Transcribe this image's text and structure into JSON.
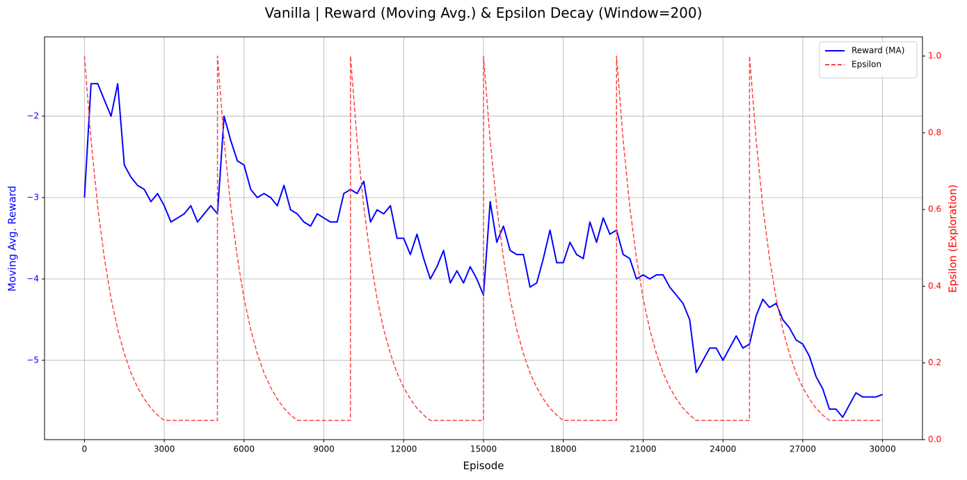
{
  "chart_data": {
    "type": "line",
    "title": "Vanilla | Reward (Moving Avg.) & Epsilon Decay (Window=200)",
    "xlabel": "Episode",
    "ylabel": "Moving Avg. Reward",
    "y2label": "Epsilon (Exploration)",
    "xlim": [
      -1500,
      31500
    ],
    "xticks": [
      0,
      3000,
      6000,
      9000,
      12000,
      15000,
      18000,
      21000,
      24000,
      27000,
      30000
    ],
    "ylim": [
      -5.975,
      -1.025
    ],
    "yticks": [
      {
        "value": -5,
        "label": "−5"
      },
      {
        "value": -4,
        "label": "−4"
      },
      {
        "value": -3,
        "label": "−3"
      },
      {
        "value": -2,
        "label": "−2"
      }
    ],
    "ylabel_color": "#0000ff",
    "y2label_color": "#ff0000",
    "y2lim": [
      0,
      1.05
    ],
    "y2ticks": [
      {
        "value": 0,
        "label": "0.0"
      },
      0.2,
      0.4,
      0.6,
      0.8,
      {
        "value": 1,
        "label": "1.0"
      }
    ],
    "grid": true,
    "legend": "upper right",
    "series": [
      {
        "name": "Reward (MA)",
        "color": "#0000ff",
        "linestyle": "solid",
        "x": [
          0,
          250,
          500,
          750,
          1000,
          1250,
          1500,
          1750,
          2000,
          2250,
          2500,
          2750,
          3000,
          3250,
          3500,
          3750,
          4000,
          4250,
          4500,
          4750,
          5000,
          5250,
          5500,
          5750,
          6000,
          6250,
          6500,
          6750,
          7000,
          7250,
          7500,
          7750,
          8000,
          8250,
          8500,
          8750,
          9000,
          9250,
          9500,
          9750,
          10000,
          10250,
          10500,
          10750,
          11000,
          11250,
          11500,
          11750,
          12000,
          12250,
          12500,
          12750,
          13000,
          13250,
          13500,
          13750,
          14000,
          14250,
          14500,
          14750,
          15000,
          15250,
          15500,
          15750,
          16000,
          16250,
          16500,
          16750,
          17000,
          17250,
          17500,
          17750,
          18000,
          18250,
          18500,
          18750,
          19000,
          19250,
          19500,
          19750,
          20000,
          20250,
          20500,
          20750,
          21000,
          21250,
          21500,
          21750,
          22000,
          22250,
          22500,
          22750,
          23000,
          23250,
          23500,
          23750,
          24000,
          24250,
          24500,
          24750,
          25000,
          25250,
          25500,
          25750,
          26000,
          26250,
          26500,
          26750,
          27000,
          27250,
          27500,
          27750,
          28000,
          28250,
          28500,
          28750,
          29000,
          29250,
          29500,
          29750,
          30000
        ],
        "values": [
          -3.0,
          -1.6,
          -1.6,
          -1.8,
          -2.0,
          -1.6,
          -2.6,
          -2.75,
          -2.85,
          -2.9,
          -3.05,
          -2.95,
          -3.1,
          -3.3,
          -3.25,
          -3.2,
          -3.1,
          -3.3,
          -3.2,
          -3.1,
          -3.2,
          -2.0,
          -2.3,
          -2.55,
          -2.6,
          -2.9,
          -3.0,
          -2.95,
          -3.0,
          -3.1,
          -2.85,
          -3.15,
          -3.2,
          -3.3,
          -3.35,
          -3.2,
          -3.25,
          -3.3,
          -3.3,
          -2.95,
          -2.9,
          -2.95,
          -2.8,
          -3.3,
          -3.15,
          -3.2,
          -3.1,
          -3.5,
          -3.5,
          -3.7,
          -3.45,
          -3.75,
          -4.0,
          -3.85,
          -3.65,
          -4.05,
          -3.9,
          -4.05,
          -3.85,
          -4.0,
          -4.2,
          -3.05,
          -3.55,
          -3.35,
          -3.65,
          -3.7,
          -3.7,
          -4.1,
          -4.05,
          -3.75,
          -3.4,
          -3.8,
          -3.8,
          -3.55,
          -3.7,
          -3.75,
          -3.3,
          -3.55,
          -3.25,
          -3.45,
          -3.4,
          -3.7,
          -3.75,
          -4.0,
          -3.95,
          -4.0,
          -3.95,
          -3.95,
          -4.1,
          -4.2,
          -4.3,
          -4.5,
          -5.15,
          -5.0,
          -4.85,
          -4.85,
          -5.0,
          -4.85,
          -4.7,
          -4.85,
          -4.8,
          -4.45,
          -4.25,
          -4.35,
          -4.3,
          -4.5,
          -4.6,
          -4.75,
          -4.8,
          -4.95,
          -5.2,
          -5.35,
          -5.6,
          -5.6,
          -5.7,
          -5.55,
          -5.4,
          -5.45,
          -5.45,
          -5.45,
          -5.42
        ]
      },
      {
        "name": "Epsilon",
        "color": "#ff4040",
        "linestyle": "dashed",
        "axis": "y2",
        "x": [
          0,
          250,
          500,
          750,
          1000,
          1250,
          1500,
          1750,
          2000,
          2250,
          2500,
          2750,
          3000,
          4999,
          5000,
          5250,
          5500,
          5750,
          6000,
          6250,
          6500,
          6750,
          7000,
          7250,
          7500,
          7750,
          8000,
          9999,
          10000,
          10250,
          10500,
          10750,
          11000,
          11250,
          11500,
          11750,
          12000,
          12250,
          12500,
          12750,
          13000,
          14999,
          15000,
          15250,
          15500,
          15750,
          16000,
          16250,
          16500,
          16750,
          17000,
          17250,
          17500,
          17750,
          18000,
          19999,
          20000,
          20250,
          20500,
          20750,
          21000,
          21250,
          21500,
          21750,
          22000,
          22250,
          22500,
          22750,
          23000,
          24999,
          25000,
          25250,
          25500,
          25750,
          26000,
          26250,
          26500,
          26750,
          27000,
          27250,
          27500,
          27750,
          28000,
          29999
        ],
        "values": [
          1.0,
          0.779,
          0.607,
          0.473,
          0.368,
          0.287,
          0.224,
          0.174,
          0.136,
          0.106,
          0.082,
          0.064,
          0.05,
          0.05,
          1.0,
          0.779,
          0.607,
          0.473,
          0.368,
          0.287,
          0.224,
          0.174,
          0.136,
          0.106,
          0.082,
          0.064,
          0.05,
          0.05,
          1.0,
          0.779,
          0.607,
          0.473,
          0.368,
          0.287,
          0.224,
          0.174,
          0.136,
          0.106,
          0.082,
          0.064,
          0.05,
          0.05,
          1.0,
          0.779,
          0.607,
          0.473,
          0.368,
          0.287,
          0.224,
          0.174,
          0.136,
          0.106,
          0.082,
          0.064,
          0.05,
          0.05,
          1.0,
          0.779,
          0.607,
          0.473,
          0.368,
          0.287,
          0.224,
          0.174,
          0.136,
          0.106,
          0.082,
          0.064,
          0.05,
          0.05,
          1.0,
          0.779,
          0.607,
          0.473,
          0.368,
          0.287,
          0.224,
          0.174,
          0.136,
          0.106,
          0.082,
          0.064,
          0.05,
          0.05
        ]
      }
    ]
  }
}
